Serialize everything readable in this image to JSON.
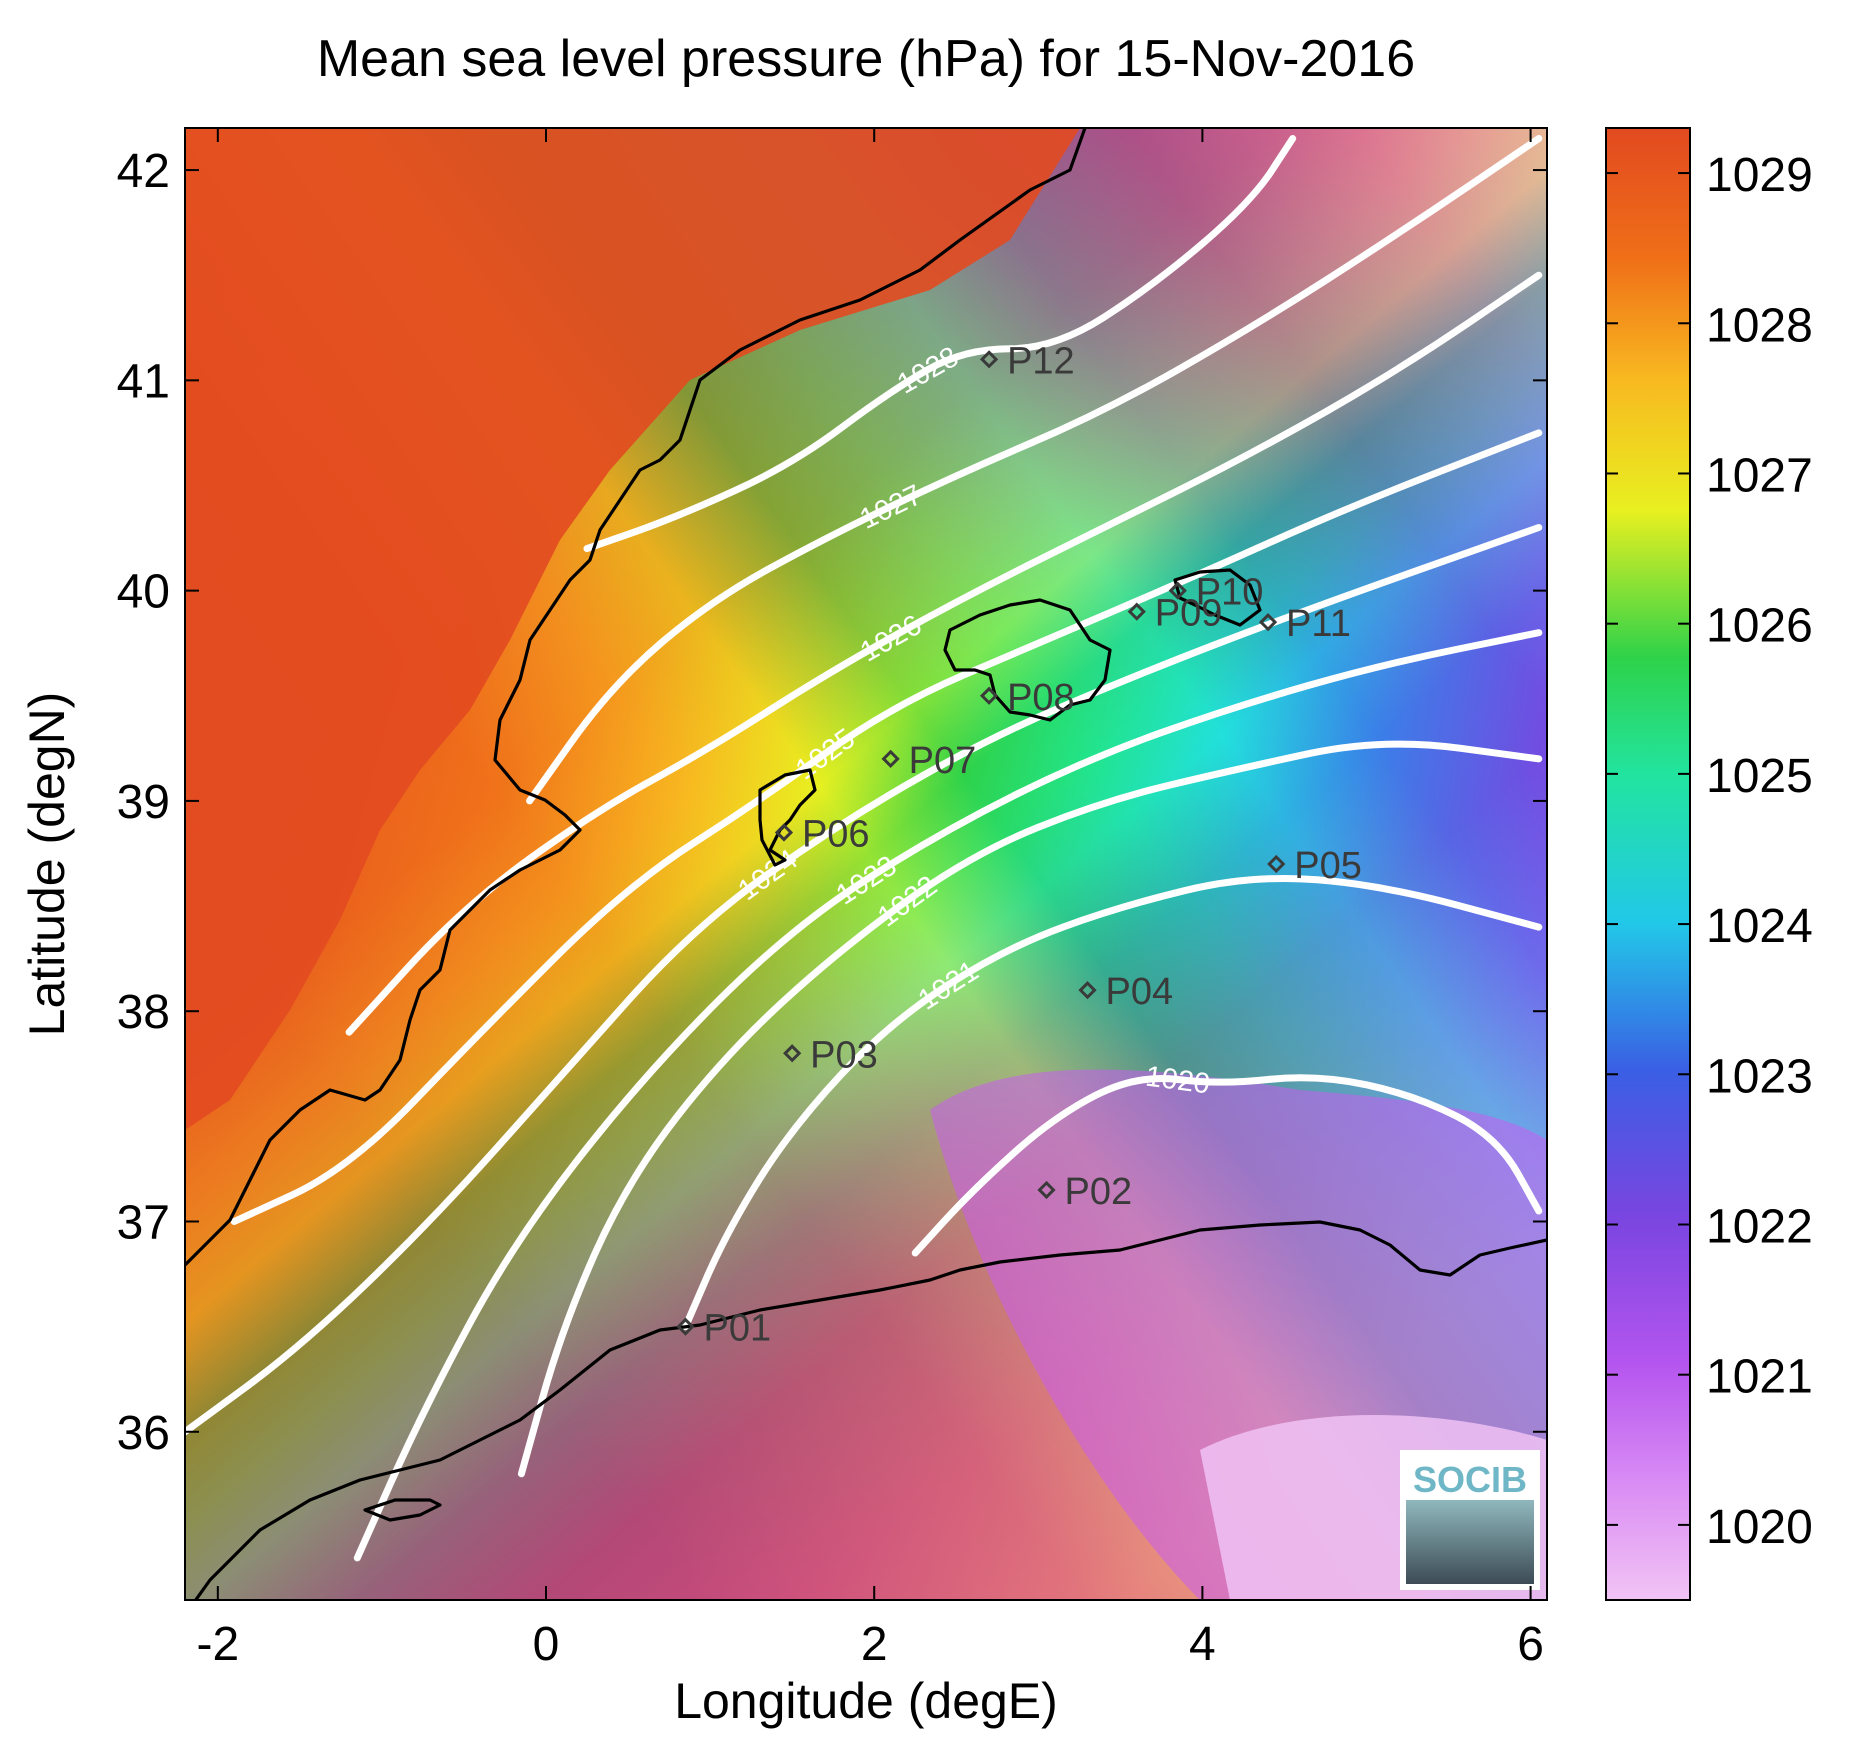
{
  "title": "Mean sea level pressure (hPa) for 15-Nov-2016",
  "xlabel": "Longitude (degE)",
  "ylabel": "Latitude (degN)",
  "colorbar_ticks": [
    "1029",
    "1028",
    "1027",
    "1026",
    "1025",
    "1024",
    "1023",
    "1022",
    "1021",
    "1020"
  ],
  "logo_text": "SOCIB",
  "chart_data": {
    "type": "heatmap",
    "title": "Mean sea level pressure (hPa) for 15-Nov-2016",
    "xlabel": "Longitude (degE)",
    "ylabel": "Latitude (degN)",
    "xlim": [
      -2.2,
      6.1
    ],
    "ylim": [
      35.2,
      42.2
    ],
    "x_ticks": [
      "-2",
      "0",
      "2",
      "4",
      "6"
    ],
    "y_ticks": [
      "42",
      "41",
      "40",
      "39",
      "38",
      "37",
      "36"
    ],
    "x_tick_values": [
      -2,
      0,
      2,
      4,
      6
    ],
    "y_tick_values": [
      42,
      41,
      40,
      39,
      38,
      37,
      36
    ],
    "colorbar": {
      "min": 1019.5,
      "max": 1029.3,
      "ticks": [
        1029,
        1028,
        1027,
        1026,
        1025,
        1024,
        1023,
        1022,
        1021,
        1020
      ],
      "colormap": [
        "#f2c4f5",
        "#c85bf0",
        "#7a45e0",
        "#3a7fe8",
        "#22e0dc",
        "#22e48a",
        "#2ed24a",
        "#e8f020",
        "#f8b820",
        "#f0721a",
        "#e24a20"
      ]
    },
    "grid": false,
    "legend": "colorbar-right",
    "contours": [
      {
        "level": "1028",
        "lon": [
          0.25,
          0.8,
          1.5,
          2.1,
          2.55,
          3.1,
          3.7,
          4.3,
          4.55
        ],
        "lat": [
          40.2,
          40.35,
          40.6,
          40.95,
          41.15,
          41.15,
          41.45,
          41.85,
          42.15
        ]
      },
      {
        "level": "1027",
        "lon": [
          -0.1,
          0.4,
          1.0,
          1.7,
          2.5,
          3.4,
          4.3,
          5.2,
          6.05
        ],
        "lat": [
          39.0,
          39.55,
          39.95,
          40.25,
          40.55,
          40.85,
          41.25,
          41.7,
          42.15
        ]
      },
      {
        "level": "1026",
        "lon": [
          -1.2,
          -0.5,
          0.3,
          1.0,
          1.7,
          2.5,
          3.4,
          4.3,
          5.2,
          6.05
        ],
        "lat": [
          37.9,
          38.5,
          38.95,
          39.25,
          39.6,
          39.95,
          40.3,
          40.65,
          41.05,
          41.5
        ]
      },
      {
        "level": "1025",
        "lon": [
          -1.9,
          -1.2,
          -0.4,
          0.5,
          1.3,
          2.1,
          3.0,
          3.9,
          4.9,
          6.05
        ],
        "lat": [
          37.0,
          37.25,
          37.9,
          38.6,
          39.0,
          39.45,
          39.75,
          40.05,
          40.4,
          40.75
        ]
      },
      {
        "level": "1024",
        "lon": [
          -2.2,
          -1.5,
          -0.7,
          0.1,
          0.9,
          1.8,
          2.7,
          3.6,
          4.6,
          6.05
        ],
        "lat": [
          36.0,
          36.4,
          37.0,
          37.7,
          38.4,
          38.9,
          39.3,
          39.6,
          39.9,
          40.3
        ]
      },
      {
        "level": "1023",
        "lon": [
          -1.15,
          -0.75,
          -0.2,
          0.6,
          1.5,
          2.4,
          3.3,
          4.2,
          5.1,
          6.05
        ],
        "lat": [
          35.4,
          36.1,
          36.9,
          37.7,
          38.4,
          38.85,
          39.2,
          39.45,
          39.65,
          39.8
        ]
      },
      {
        "level": "1022",
        "lon": [
          -0.15,
          0.1,
          0.5,
          1.1,
          1.8,
          2.6,
          3.4,
          4.2,
          5.1,
          6.05
        ],
        "lat": [
          35.8,
          36.5,
          37.2,
          37.8,
          38.3,
          38.75,
          39.0,
          39.15,
          39.3,
          39.2
        ]
      },
      {
        "level": "1021",
        "lon": [
          0.85,
          1.1,
          1.5,
          2.1,
          2.8,
          3.5,
          4.3,
          5.1,
          6.05
        ],
        "lat": [
          36.5,
          36.95,
          37.45,
          37.95,
          38.3,
          38.5,
          38.65,
          38.6,
          38.4
        ]
      },
      {
        "level": "1020",
        "lon": [
          2.25,
          2.6,
          3.1,
          3.6,
          4.1,
          4.7,
          5.3,
          5.8,
          6.05
        ],
        "lat": [
          36.85,
          37.15,
          37.5,
          37.7,
          37.65,
          37.7,
          37.6,
          37.4,
          37.05
        ]
      }
    ],
    "points": [
      {
        "name": "P01",
        "lon": 0.85,
        "lat": 36.5
      },
      {
        "name": "P02",
        "lon": 3.05,
        "lat": 37.15
      },
      {
        "name": "P03",
        "lon": 1.5,
        "lat": 37.8
      },
      {
        "name": "P04",
        "lon": 3.3,
        "lat": 38.1
      },
      {
        "name": "P05",
        "lon": 4.45,
        "lat": 38.7
      },
      {
        "name": "P06",
        "lon": 1.45,
        "lat": 38.85
      },
      {
        "name": "P07",
        "lon": 2.1,
        "lat": 39.2
      },
      {
        "name": "P08",
        "lon": 2.7,
        "lat": 39.5
      },
      {
        "name": "P09",
        "lon": 3.6,
        "lat": 39.9
      },
      {
        "name": "P10",
        "lon": 3.85,
        "lat": 40.0
      },
      {
        "name": "P11",
        "lon": 4.4,
        "lat": 39.85
      },
      {
        "name": "P12",
        "lon": 2.7,
        "lat": 41.1
      }
    ]
  }
}
